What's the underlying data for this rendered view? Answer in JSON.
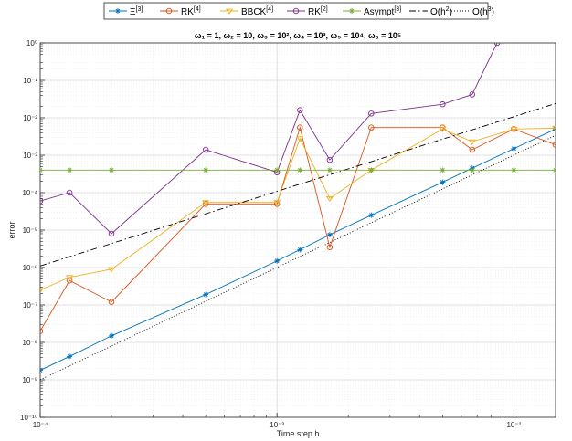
{
  "chart_data": {
    "type": "line",
    "title": "ω₁ = 1, ω₂ = 10, ω₃ = 10², ω₄ = 10³, ω₅ = 10⁴, ω₆ = 10⁵",
    "xlabel": "Time step h",
    "ylabel": "error",
    "xscale": "log",
    "yscale": "log",
    "xlim": [
      0.0001,
      0.015
    ],
    "ylim": [
      1e-10,
      1
    ],
    "grid": true,
    "legend": "top",
    "x_tick_labels": [
      "10⁻⁴",
      "10⁻³",
      "10⁻²"
    ],
    "y_tick_labels": [
      "10⁻¹⁰",
      "10⁻⁹",
      "10⁻⁸",
      "10⁻⁷",
      "10⁻⁶",
      "10⁻⁵",
      "10⁻⁴",
      "10⁻³",
      "10⁻²",
      "10⁻¹",
      "10⁰"
    ],
    "series": [
      {
        "name": "Ξ[3]",
        "legend_main": "Ξ",
        "legend_sup": "[3]",
        "color": "#0072BD",
        "marker": "asterisk",
        "dash": "solid",
        "x": [
          0.0001,
          0.000133,
          0.0002,
          0.0005,
          0.001,
          0.00125,
          0.00167,
          0.0025,
          0.005,
          0.00667,
          0.01,
          0.015
        ],
        "y": [
          1.8e-09,
          4.2e-09,
          1.5e-08,
          1.9e-07,
          1.5e-06,
          3e-06,
          7.5e-06,
          2.5e-05,
          0.00019,
          0.00045,
          0.0015,
          0.005
        ]
      },
      {
        "name": "RK[4]",
        "legend_main": "RK",
        "legend_sup": "[4]",
        "color": "#D95319",
        "marker": "circle",
        "dash": "solid",
        "x": [
          0.0001,
          0.000133,
          0.0002,
          0.0005,
          0.001,
          0.00125,
          0.00167,
          0.0025,
          0.005,
          0.00667,
          0.01,
          0.015
        ],
        "y": [
          2e-08,
          4.5e-07,
          1.2e-07,
          5e-05,
          5e-05,
          0.0055,
          3.5e-06,
          0.0055,
          0.0055,
          0.0014,
          0.005,
          0.0019
        ]
      },
      {
        "name": "BBCK[4]",
        "legend_main": "BBCK",
        "legend_sup": "[4]",
        "color": "#EDB120",
        "marker": "triangle-down",
        "dash": "solid",
        "x": [
          0.0001,
          0.000133,
          0.0002,
          0.0005,
          0.001,
          0.00125,
          0.00167,
          0.0025,
          0.005,
          0.00667,
          0.01,
          0.015
        ],
        "y": [
          2.5e-07,
          5.5e-07,
          9e-07,
          5.5e-05,
          5.5e-05,
          0.0028,
          7e-05,
          0.0004,
          0.005,
          0.0023,
          0.005,
          0.0053
        ]
      },
      {
        "name": "RK[2]",
        "legend_main": "RK",
        "legend_sup": "[2]",
        "color": "#7E2F8E",
        "marker": "circle",
        "dash": "solid",
        "x": [
          0.0001,
          0.000133,
          0.0002,
          0.0005,
          0.001,
          0.00125,
          0.00167,
          0.0025,
          0.005,
          0.00667,
          0.0085
        ],
        "y": [
          6e-05,
          0.0001,
          8e-06,
          0.0014,
          0.00035,
          0.016,
          0.00075,
          0.013,
          0.023,
          0.042,
          1
        ]
      },
      {
        "name": "Asympt[3]",
        "legend_main": "Asympt",
        "legend_sup": "[3]",
        "color": "#77AC30",
        "marker": "asterisk",
        "dash": "solid",
        "x": [
          0.0001,
          0.000133,
          0.0002,
          0.0005,
          0.001,
          0.00125,
          0.00167,
          0.0025,
          0.005,
          0.00667,
          0.01,
          0.015
        ],
        "y": [
          0.0004,
          0.0004,
          0.0004,
          0.0004,
          0.0004,
          0.0004,
          0.0004,
          0.0004,
          0.0004,
          0.0004,
          0.0004,
          0.0004
        ]
      },
      {
        "name": "O(h2)",
        "legend_main": "O(h",
        "legend_sup": "2",
        "legend_tail": ")",
        "color": "#000000",
        "marker": "none",
        "dash": "dashdot",
        "x": [
          0.0001,
          0.015
        ],
        "y": [
          1.1e-06,
          0.024
        ]
      },
      {
        "name": "O(h3)",
        "legend_main": "O(h",
        "legend_sup": "3",
        "legend_tail": ")",
        "color": "#000000",
        "marker": "none",
        "dash": "dotted",
        "x": [
          0.0001,
          0.015
        ],
        "y": [
          1e-09,
          0.0034
        ]
      }
    ]
  }
}
